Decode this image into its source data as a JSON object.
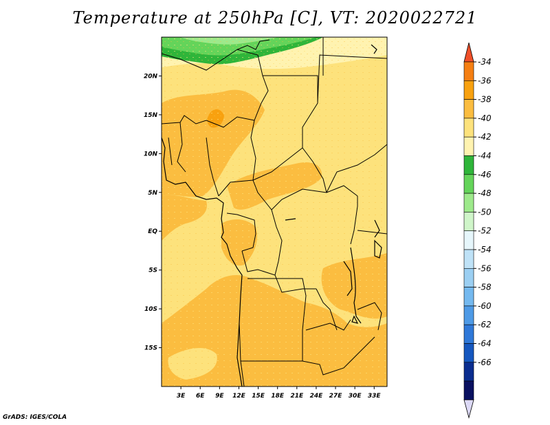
{
  "title": "Temperature at 250hPa [C], VT: 2020022721",
  "footer": "GrADS: IGES/COLA",
  "map": {
    "lat_labels": [
      "20N",
      "15N",
      "10N",
      "5N",
      "EQ",
      "5S",
      "10S",
      "15S"
    ],
    "lon_labels": [
      "3E",
      "6E",
      "9E",
      "12E",
      "15E",
      "18E",
      "21E",
      "24E",
      "27E",
      "30E",
      "33E"
    ],
    "extent": {
      "lon_min": 0,
      "lon_max": 35,
      "lat_min": -20,
      "lat_max": 25
    }
  },
  "colorbar": {
    "labels": [
      "-34",
      "-36",
      "-38",
      "-40",
      "-42",
      "-44",
      "-46",
      "-48",
      "-50",
      "-52",
      "-54",
      "-56",
      "-58",
      "-60",
      "-62",
      "-64",
      "-66"
    ],
    "colors": [
      "#f0502a",
      "#f57f12",
      "#f8a10f",
      "#fbbd40",
      "#fde27c",
      "#fff3b0",
      "#2fb53a",
      "#64d45a",
      "#9de98b",
      "#cff5c9",
      "#e6f6fb",
      "#bfe2f7",
      "#9bcff2",
      "#74b9ef",
      "#4e9ae6",
      "#2f78d8",
      "#1557bf",
      "#0a2d8f",
      "#091060",
      "#dcd9f6"
    ]
  }
}
